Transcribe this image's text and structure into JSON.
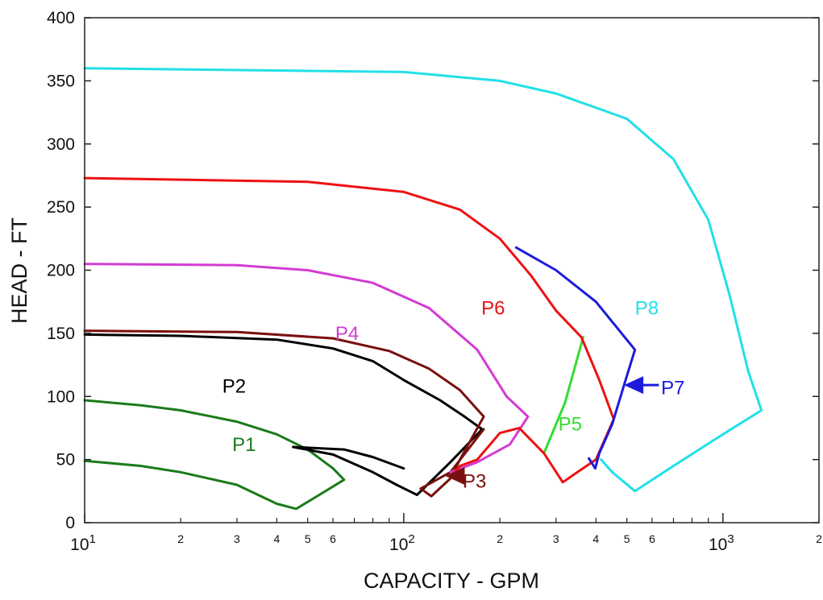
{
  "chart_data": {
    "type": "line",
    "xlabel": "CAPACITY - GPM",
    "ylabel": "HEAD - FT",
    "xscale": "log",
    "xlim": [
      10,
      2000
    ],
    "ylim": [
      0,
      400
    ],
    "grid": false,
    "y_ticks": [
      "0",
      "50",
      "100",
      "150",
      "200",
      "250",
      "300",
      "350",
      "400"
    ],
    "x_major_ticks": [
      {
        "value": 10,
        "base": "10",
        "exp": "1"
      },
      {
        "value": 100,
        "base": "10",
        "exp": "2"
      },
      {
        "value": 1000,
        "base": "10",
        "exp": "3"
      }
    ],
    "x_minor_tick_labels": [
      {
        "value": 20,
        "label": "2"
      },
      {
        "value": 30,
        "label": "3"
      },
      {
        "value": 40,
        "label": "4"
      },
      {
        "value": 50,
        "label": "5"
      },
      {
        "value": 60,
        "label": "6"
      },
      {
        "value": 200,
        "label": "2"
      },
      {
        "value": 300,
        "label": "3"
      },
      {
        "value": 400,
        "label": "4"
      },
      {
        "value": 500,
        "label": "5"
      },
      {
        "value": 600,
        "label": "6"
      },
      {
        "value": 2000,
        "label": "2"
      }
    ],
    "series": [
      {
        "name": "P1",
        "color": "#1b7a1b",
        "label_at": [
          29,
          62
        ],
        "points": [
          [
            10,
            97
          ],
          [
            15,
            93
          ],
          [
            20,
            89
          ],
          [
            30,
            80
          ],
          [
            40,
            70
          ],
          [
            50,
            58
          ],
          [
            60,
            43
          ],
          [
            65,
            34
          ],
          [
            56,
            24
          ],
          [
            46,
            11
          ],
          [
            40,
            15
          ],
          [
            30,
            30
          ],
          [
            20,
            40
          ],
          [
            15,
            45
          ],
          [
            10,
            49
          ]
        ]
      },
      {
        "name": "P2",
        "color": "#000000",
        "label_at": [
          27,
          108
        ],
        "points": [
          [
            10,
            149
          ],
          [
            20,
            148
          ],
          [
            40,
            145
          ],
          [
            60,
            138
          ],
          [
            80,
            128
          ],
          [
            100,
            113
          ],
          [
            130,
            97
          ],
          [
            155,
            84
          ],
          [
            176,
            74
          ],
          [
            140,
            48
          ],
          [
            110,
            22
          ],
          [
            95,
            30
          ],
          [
            80,
            40
          ],
          [
            60,
            54
          ],
          [
            45,
            60
          ],
          [
            65,
            58
          ],
          [
            80,
            52
          ],
          [
            100,
            43
          ]
        ]
      },
      {
        "name": "P3",
        "color": "#7a0f0f",
        "label_at": [
          153,
          33
        ],
        "points": [
          [
            10,
            152
          ],
          [
            30,
            151
          ],
          [
            60,
            146
          ],
          [
            90,
            136
          ],
          [
            120,
            122
          ],
          [
            150,
            105
          ],
          [
            178,
            84
          ],
          [
            150,
            50
          ],
          [
            140,
            35
          ],
          [
            122,
            21
          ],
          [
            113,
            27
          ],
          [
            140,
            40
          ],
          [
            178,
            74
          ]
        ]
      },
      {
        "name": "P4",
        "color": "#d33bd3",
        "label_at": [
          61,
          150
        ],
        "points": [
          [
            10,
            205
          ],
          [
            30,
            204
          ],
          [
            50,
            200
          ],
          [
            80,
            190
          ],
          [
            120,
            170
          ],
          [
            170,
            137
          ],
          [
            210,
            100
          ],
          [
            245,
            84
          ],
          [
            215,
            62
          ],
          [
            170,
            48
          ],
          [
            140,
            40
          ]
        ]
      },
      {
        "name": "P5",
        "color": "#33dd33",
        "label_at": [
          305,
          78
        ],
        "points": [
          [
            275,
            55
          ],
          [
            320,
            95
          ],
          [
            365,
            147
          ]
        ]
      },
      {
        "name": "P6",
        "color": "#ee1111",
        "label_at": [
          175,
          170
        ],
        "points": [
          [
            10,
            273
          ],
          [
            50,
            270
          ],
          [
            100,
            262
          ],
          [
            150,
            248
          ],
          [
            200,
            225
          ],
          [
            250,
            196
          ],
          [
            300,
            168
          ],
          [
            360,
            147
          ],
          [
            410,
            113
          ],
          [
            455,
            82
          ],
          [
            400,
            50
          ],
          [
            350,
            40
          ],
          [
            315,
            32
          ],
          [
            275,
            55
          ],
          [
            230,
            75
          ],
          [
            200,
            71
          ],
          [
            170,
            50
          ],
          [
            150,
            45
          ],
          [
            140,
            36
          ]
        ]
      },
      {
        "name": "P7",
        "color": "#1b1bdd",
        "label_at": [
          640,
          107
        ],
        "points": [
          [
            225,
            218
          ],
          [
            300,
            200
          ],
          [
            400,
            175
          ],
          [
            530,
            137
          ],
          [
            490,
            109
          ],
          [
            450,
            78
          ],
          [
            410,
            55
          ],
          [
            398,
            43
          ],
          [
            380,
            51
          ]
        ]
      },
      {
        "name": "P8",
        "color": "#22e0e8",
        "label_at": [
          530,
          170
        ],
        "points": [
          [
            10,
            360
          ],
          [
            100,
            357
          ],
          [
            200,
            350
          ],
          [
            300,
            340
          ],
          [
            500,
            320
          ],
          [
            700,
            288
          ],
          [
            900,
            240
          ],
          [
            1050,
            180
          ],
          [
            1200,
            120
          ],
          [
            1320,
            89
          ],
          [
            1000,
            70
          ],
          [
            700,
            45
          ],
          [
            530,
            25
          ],
          [
            450,
            40
          ],
          [
            415,
            50
          ]
        ]
      }
    ],
    "arrows": [
      {
        "target": "P3",
        "color": "#7a0f0f",
        "from": [
          155,
          37
        ],
        "to": [
          135,
          37
        ]
      },
      {
        "target": "P7",
        "color": "#1b1bdd",
        "from": [
          630,
          109
        ],
        "to": [
          490,
          109
        ]
      }
    ]
  }
}
